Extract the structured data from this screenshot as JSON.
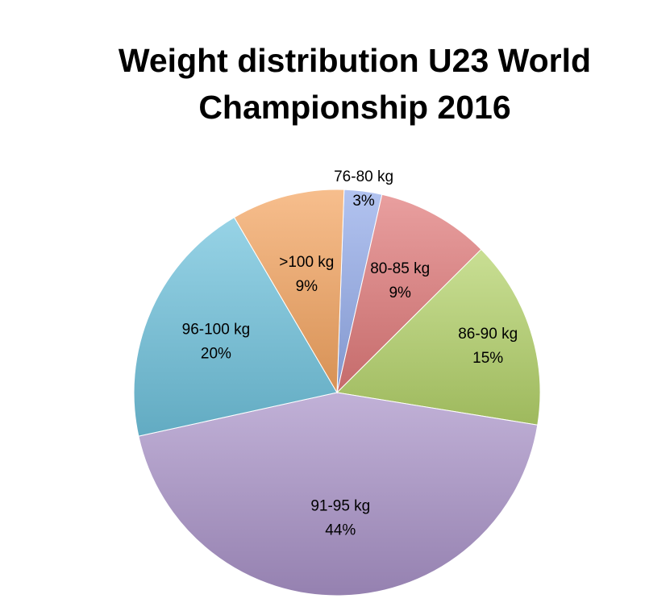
{
  "chart_data": {
    "type": "pie",
    "title": "Weight distribution U23 World Championship 2016",
    "title_lines": [
      "Weight distribution U23 World",
      "Championship 2016"
    ],
    "slices": [
      {
        "category": "76-80 kg",
        "percent_label": "3%",
        "value": 3,
        "color": "#94acea"
      },
      {
        "category": "80-85 kg",
        "percent_label": "9%",
        "value": 9,
        "color": "#e07a7a"
      },
      {
        "category": "86-90 kg",
        "percent_label": "15%",
        "value": 15,
        "color": "#b4d26a"
      },
      {
        "category": "91-95 kg",
        "percent_label": "44%",
        "value": 44,
        "color": "#a993c8"
      },
      {
        "category": "96-100 kg",
        "percent_label": "20%",
        "value": 20,
        "color": "#6fc2dc"
      },
      {
        "category": ">100 kg",
        "percent_label": "9%",
        "value": 9,
        "color": "#f4a561"
      }
    ],
    "legend": "none",
    "data_labels": "category and percent on slice"
  }
}
